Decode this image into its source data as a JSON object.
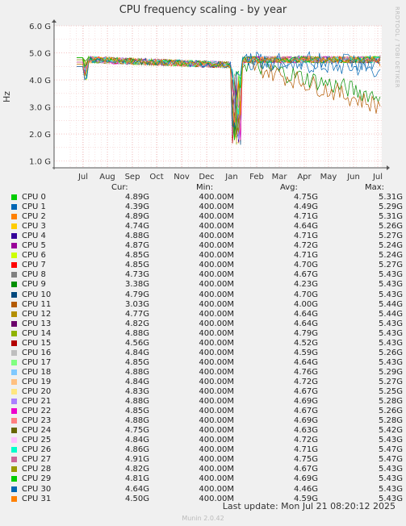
{
  "title": "CPU frequency scaling - by year",
  "side_credit": "RRDTOOL / TOBI OETIKER",
  "footer": {
    "last_update": "Last update: Mon Jul 21 08:20:12 2025",
    "munin": "Munin 2.0.42"
  },
  "legend_header": {
    "cur": "Cur:",
    "min": "Min:",
    "avg": "Avg:",
    "max": "Max:"
  },
  "chart_data": {
    "type": "line",
    "ylabel": "Hz",
    "y_ticks": [
      "1.0 G",
      "2.0 G",
      "3.0 G",
      "4.0 G",
      "5.0 G",
      "6.0 G"
    ],
    "ylim": [
      0.75,
      6.0
    ],
    "x_ticks": [
      "Jul",
      "Aug",
      "Sep",
      "Oct",
      "Nov",
      "Dec",
      "Jan",
      "Feb",
      "Mar",
      "Apr",
      "May",
      "Jun",
      "Jul"
    ],
    "grid": true,
    "series": [
      {
        "name": "CPU 0",
        "color": "#00cc00",
        "cur": "4.89G",
        "min": "400.00M",
        "avg": "4.75G",
        "max": "5.31G"
      },
      {
        "name": "CPU 1",
        "color": "#0066b3",
        "cur": "4.39G",
        "min": "400.00M",
        "avg": "4.49G",
        "max": "5.29G"
      },
      {
        "name": "CPU 2",
        "color": "#ff8000",
        "cur": "4.89G",
        "min": "400.00M",
        "avg": "4.71G",
        "max": "5.31G"
      },
      {
        "name": "CPU 3",
        "color": "#ffcc00",
        "cur": "4.74G",
        "min": "400.00M",
        "avg": "4.64G",
        "max": "5.26G"
      },
      {
        "name": "CPU 4",
        "color": "#330099",
        "cur": "4.88G",
        "min": "400.00M",
        "avg": "4.71G",
        "max": "5.27G"
      },
      {
        "name": "CPU 5",
        "color": "#990099",
        "cur": "4.87G",
        "min": "400.00M",
        "avg": "4.72G",
        "max": "5.24G"
      },
      {
        "name": "CPU 6",
        "color": "#ccff00",
        "cur": "4.85G",
        "min": "400.00M",
        "avg": "4.71G",
        "max": "5.24G"
      },
      {
        "name": "CPU 7",
        "color": "#ff0000",
        "cur": "4.85G",
        "min": "400.00M",
        "avg": "4.70G",
        "max": "5.27G"
      },
      {
        "name": "CPU 8",
        "color": "#808080",
        "cur": "4.73G",
        "min": "400.00M",
        "avg": "4.67G",
        "max": "5.43G"
      },
      {
        "name": "CPU 9",
        "color": "#008f00",
        "cur": "3.38G",
        "min": "400.00M",
        "avg": "4.23G",
        "max": "5.43G"
      },
      {
        "name": "CPU 10",
        "color": "#00487d",
        "cur": "4.79G",
        "min": "400.00M",
        "avg": "4.70G",
        "max": "5.43G"
      },
      {
        "name": "CPU 11",
        "color": "#b35a00",
        "cur": "3.03G",
        "min": "400.00M",
        "avg": "4.00G",
        "max": "5.44G"
      },
      {
        "name": "CPU 12",
        "color": "#b38f00",
        "cur": "4.77G",
        "min": "400.00M",
        "avg": "4.64G",
        "max": "5.44G"
      },
      {
        "name": "CPU 13",
        "color": "#6b006b",
        "cur": "4.82G",
        "min": "400.00M",
        "avg": "4.64G",
        "max": "5.43G"
      },
      {
        "name": "CPU 14",
        "color": "#8fb300",
        "cur": "4.88G",
        "min": "400.00M",
        "avg": "4.79G",
        "max": "5.43G"
      },
      {
        "name": "CPU 15",
        "color": "#b30000",
        "cur": "4.56G",
        "min": "400.00M",
        "avg": "4.52G",
        "max": "5.43G"
      },
      {
        "name": "CPU 16",
        "color": "#bebebe",
        "cur": "4.84G",
        "min": "400.00M",
        "avg": "4.59G",
        "max": "5.26G"
      },
      {
        "name": "CPU 17",
        "color": "#80ff80",
        "cur": "4.85G",
        "min": "400.00M",
        "avg": "4.64G",
        "max": "5.43G"
      },
      {
        "name": "CPU 18",
        "color": "#80c9ff",
        "cur": "4.88G",
        "min": "400.00M",
        "avg": "4.76G",
        "max": "5.29G"
      },
      {
        "name": "CPU 19",
        "color": "#ffc080",
        "cur": "4.84G",
        "min": "400.00M",
        "avg": "4.72G",
        "max": "5.27G"
      },
      {
        "name": "CPU 20",
        "color": "#ffe680",
        "cur": "4.83G",
        "min": "400.00M",
        "avg": "4.67G",
        "max": "5.25G"
      },
      {
        "name": "CPU 21",
        "color": "#aa80ff",
        "cur": "4.88G",
        "min": "400.00M",
        "avg": "4.69G",
        "max": "5.28G"
      },
      {
        "name": "CPU 22",
        "color": "#ee00cc",
        "cur": "4.85G",
        "min": "400.00M",
        "avg": "4.67G",
        "max": "5.26G"
      },
      {
        "name": "CPU 23",
        "color": "#ff8080",
        "cur": "4.88G",
        "min": "400.00M",
        "avg": "4.69G",
        "max": "5.28G"
      },
      {
        "name": "CPU 24",
        "color": "#666600",
        "cur": "4.75G",
        "min": "400.00M",
        "avg": "4.63G",
        "max": "5.42G"
      },
      {
        "name": "CPU 25",
        "color": "#ffbfff",
        "cur": "4.84G",
        "min": "400.00M",
        "avg": "4.72G",
        "max": "5.43G"
      },
      {
        "name": "CPU 26",
        "color": "#00ffcc",
        "cur": "4.86G",
        "min": "400.00M",
        "avg": "4.71G",
        "max": "5.47G"
      },
      {
        "name": "CPU 27",
        "color": "#cc6699",
        "cur": "4.91G",
        "min": "400.00M",
        "avg": "4.75G",
        "max": "5.47G"
      },
      {
        "name": "CPU 28",
        "color": "#999900",
        "cur": "4.82G",
        "min": "400.00M",
        "avg": "4.67G",
        "max": "5.43G"
      },
      {
        "name": "CPU 29",
        "color": "#00cc00",
        "cur": "4.81G",
        "min": "400.00M",
        "avg": "4.69G",
        "max": "5.43G"
      },
      {
        "name": "CPU 30",
        "color": "#0066b3",
        "cur": "4.64G",
        "min": "400.00M",
        "avg": "4.46G",
        "max": "5.43G"
      },
      {
        "name": "CPU 31",
        "color": "#ff8000",
        "cur": "4.50G",
        "min": "400.00M",
        "avg": "4.59G",
        "max": "5.43G"
      }
    ]
  }
}
